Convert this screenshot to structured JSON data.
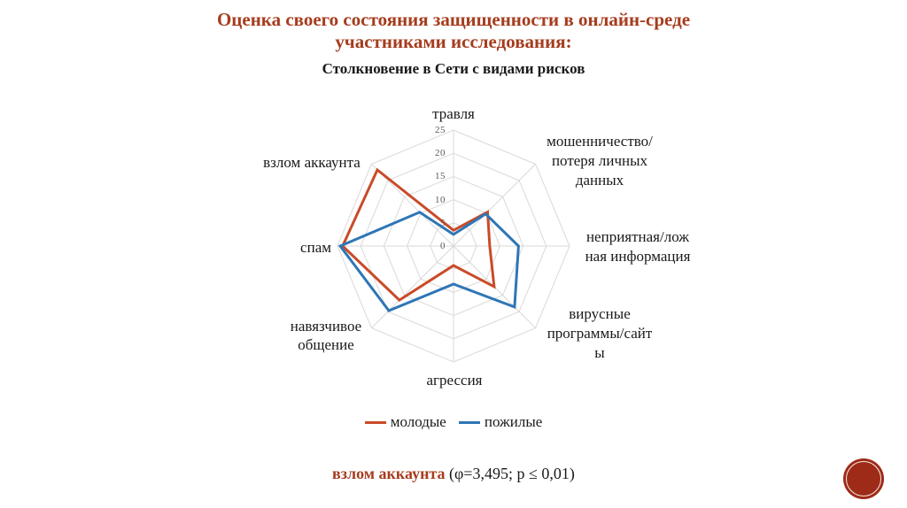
{
  "slide": {
    "title_line1": "Оценка своего состояния защищенности в онлайн-среде",
    "title_line2": "участниками исследования:",
    "title_color": "#A63C1E"
  },
  "chart_data": {
    "type": "radar",
    "title": "Столкновение в Сети с видами рисков",
    "categories": [
      "травля",
      "мошенничество/потеря личных данных",
      "неприятная/ложная информация",
      "вирусные программы/сайты",
      "агрессия",
      "навязчивое общение",
      "спам",
      "взлом аккаунта"
    ],
    "axis_label_display": [
      "травля",
      "мошенничество/\nпотеря личных\nданных",
      "неприятная/лож\nная информация",
      "вирусные\nпрограммы/сайт\nы",
      "агрессия",
      "навязчивое\nобщение",
      "спам",
      "взлом аккаунта"
    ],
    "series": [
      {
        "name": "молодые",
        "color": "#C94B28",
        "values": [
          3.4,
          10.4,
          7.8,
          12.4,
          4.2,
          16.5,
          23.9,
          23.2
        ]
      },
      {
        "name": "пожилые",
        "color": "#2E76B5",
        "values": [
          2.5,
          9.8,
          14.0,
          18.6,
          8.2,
          19.7,
          24.4,
          10.3
        ]
      }
    ],
    "rmax": 25,
    "rstep": 5,
    "ticks": [
      "0",
      "5",
      "10",
      "15",
      "20",
      "25"
    ],
    "grid_color": "#D9D9D9",
    "tick_color": "#595959",
    "legend_position": "bottom",
    "grid": true
  },
  "caption": {
    "highlight": "взлом аккаунта",
    "rest": " (φ=3,495; p ≤ 0,01)"
  },
  "logo": {
    "color": "#9E2B17"
  }
}
